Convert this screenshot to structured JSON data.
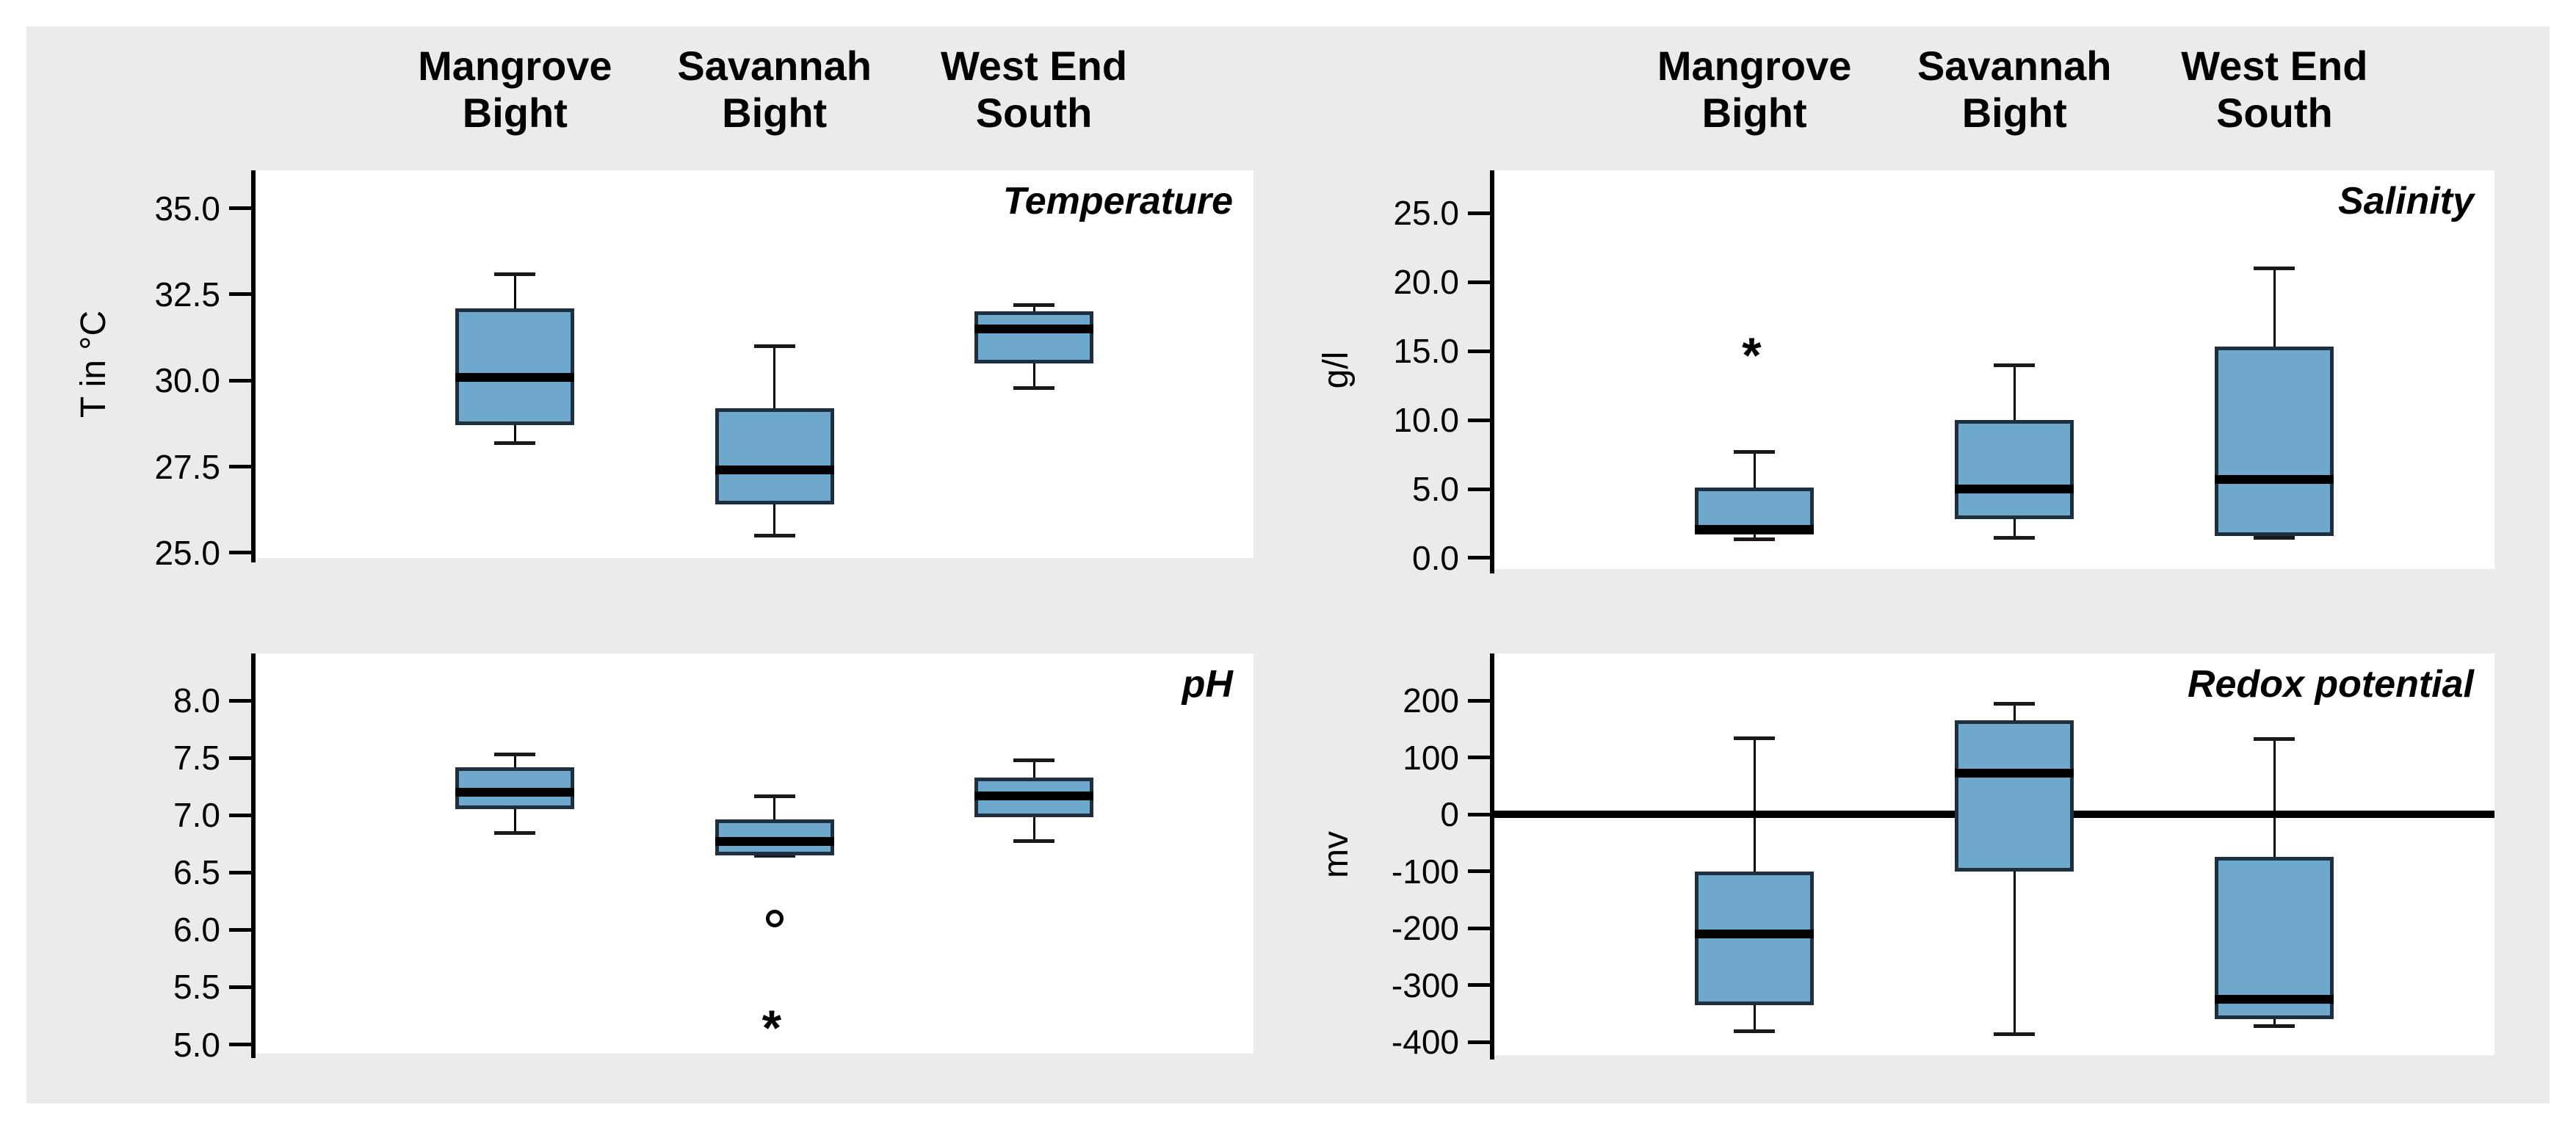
{
  "figure": {
    "background_color": "#EBEBEB",
    "plot_background": "#FFFFFF",
    "box_fill_color": "#6FA8CD",
    "box_border_color": "#1E2F40",
    "median_color": "#000000",
    "sites": [
      {
        "name": "Mangrove Bight",
        "header": "Mangrove\nBight"
      },
      {
        "name": "Savannah Bight",
        "header": "Savannah\nBight"
      },
      {
        "name": "West End South",
        "header": "West End\nSouth"
      }
    ]
  },
  "chart_data": [
    {
      "type": "box",
      "id": "temperature",
      "panel": "top-left",
      "title": "Temperature",
      "ylabel": "T in °C",
      "ylim": [
        24.85,
        36.1
      ],
      "yticks": [
        {
          "value": 25.0,
          "label": "25.0"
        },
        {
          "value": 27.5,
          "label": "27.5"
        },
        {
          "value": 30.0,
          "label": "30.0"
        },
        {
          "value": 32.5,
          "label": "32.5"
        },
        {
          "value": 35.0,
          "label": "35.0"
        }
      ],
      "categories": [
        "Mangrove Bight",
        "Savannah Bight",
        "West End South"
      ],
      "series": [
        {
          "category": "Mangrove Bight",
          "whisker_low": 28.2,
          "q1": 28.7,
          "median": 30.1,
          "q3": 32.1,
          "whisker_high": 33.1,
          "outliers": [],
          "extremes": []
        },
        {
          "category": "Savannah Bight",
          "whisker_low": 25.5,
          "q1": 26.4,
          "median": 27.4,
          "q3": 29.2,
          "whisker_high": 31.0,
          "outliers": [],
          "extremes": []
        },
        {
          "category": "West End South",
          "whisker_low": 29.8,
          "q1": 30.5,
          "median": 31.5,
          "q3": 32.0,
          "whisker_high": 32.2,
          "outliers": [],
          "extremes": []
        }
      ],
      "reference_line": null
    },
    {
      "type": "box",
      "id": "salinity",
      "panel": "top-right",
      "title": "Salinity",
      "ylabel": "g/l",
      "ylim": [
        -0.8,
        28.1
      ],
      "yticks": [
        {
          "value": 0.0,
          "label": "0.0"
        },
        {
          "value": 5.0,
          "label": "5.0"
        },
        {
          "value": 10.0,
          "label": "10.0"
        },
        {
          "value": 15.0,
          "label": "15.0"
        },
        {
          "value": 20.0,
          "label": "20.0"
        },
        {
          "value": 25.0,
          "label": "25.0"
        }
      ],
      "categories": [
        "Mangrove Bight",
        "Savannah Bight",
        "West End South"
      ],
      "series": [
        {
          "category": "Mangrove Bight",
          "whisker_low": 1.4,
          "q1": 1.7,
          "median": 2.1,
          "q3": 5.1,
          "whisker_high": 7.7,
          "outliers": [],
          "extremes": [
            15.3
          ]
        },
        {
          "category": "Savannah Bight",
          "whisker_low": 1.5,
          "q1": 2.8,
          "median": 5.0,
          "q3": 10.0,
          "whisker_high": 14.0,
          "outliers": [],
          "extremes": []
        },
        {
          "category": "West End South",
          "whisker_low": 1.5,
          "q1": 1.6,
          "median": 5.7,
          "q3": 15.3,
          "whisker_high": 21.0,
          "outliers": [],
          "extremes": []
        }
      ],
      "reference_line": null
    },
    {
      "type": "box",
      "id": "ph",
      "panel": "bottom-left",
      "title": "pH",
      "ylabel": null,
      "ylim": [
        4.92,
        8.41
      ],
      "yticks": [
        {
          "value": 5.0,
          "label": "5.0"
        },
        {
          "value": 5.5,
          "label": "5.5"
        },
        {
          "value": 6.0,
          "label": "6.0"
        },
        {
          "value": 6.5,
          "label": "6.5"
        },
        {
          "value": 7.0,
          "label": "7.0"
        },
        {
          "value": 7.5,
          "label": "7.5"
        },
        {
          "value": 8.0,
          "label": "8.0"
        }
      ],
      "categories": [
        "Mangrove Bight",
        "Savannah Bight",
        "West End South"
      ],
      "series": [
        {
          "category": "Mangrove Bight",
          "whisker_low": 6.85,
          "q1": 7.05,
          "median": 7.2,
          "q3": 7.42,
          "whisker_high": 7.53,
          "outliers": [],
          "extremes": []
        },
        {
          "category": "Savannah Bight",
          "whisker_low": 6.65,
          "q1": 6.65,
          "median": 6.77,
          "q3": 6.96,
          "whisker_high": 7.17,
          "outliers": [
            6.1
          ],
          "extremes": [
            5.22
          ]
        },
        {
          "category": "West End South",
          "whisker_low": 6.78,
          "q1": 6.98,
          "median": 7.17,
          "q3": 7.33,
          "whisker_high": 7.48,
          "outliers": [],
          "extremes": []
        }
      ],
      "reference_line": null
    },
    {
      "type": "box",
      "id": "redox",
      "panel": "bottom-right",
      "title": "Redox potential",
      "ylabel": "mv",
      "ylim": [
        -423,
        283
      ],
      "yticks": [
        {
          "value": -400,
          "label": "-400"
        },
        {
          "value": -300,
          "label": "-300"
        },
        {
          "value": -200,
          "label": "-200"
        },
        {
          "value": -100,
          "label": "-100"
        },
        {
          "value": 0,
          "label": "0"
        },
        {
          "value": 100,
          "label": "100"
        },
        {
          "value": 200,
          "label": "200"
        }
      ],
      "categories": [
        "Mangrove Bight",
        "Savannah Bight",
        "West End South"
      ],
      "series": [
        {
          "category": "Mangrove Bight",
          "whisker_low": -380,
          "q1": -335,
          "median": -210,
          "q3": -100,
          "whisker_high": 135,
          "outliers": [],
          "extremes": []
        },
        {
          "category": "Savannah Bight",
          "whisker_low": -385,
          "q1": -100,
          "median": 72,
          "q3": 165,
          "whisker_high": 195,
          "outliers": [],
          "extremes": []
        },
        {
          "category": "West End South",
          "whisker_low": -372,
          "q1": -360,
          "median": -325,
          "q3": -75,
          "whisker_high": 133,
          "outliers": [],
          "extremes": []
        }
      ],
      "reference_line": 0
    }
  ]
}
